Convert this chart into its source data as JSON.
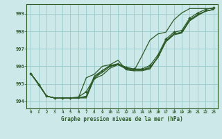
{
  "title": "Graphe pression niveau de la mer (hPa)",
  "background_color": "#cce8e8",
  "grid_color": "#9ecece",
  "line_color": "#2d5a27",
  "marker_color": "#2d5a27",
  "x_labels": [
    "0",
    "1",
    "2",
    "3",
    "4",
    "5",
    "6",
    "7",
    "8",
    "9",
    "10",
    "11",
    "12",
    "13",
    "14",
    "15",
    "16",
    "17",
    "18",
    "19",
    "20",
    "21",
    "22",
    "23"
  ],
  "y_ticks": [
    994,
    995,
    996,
    997,
    998,
    999
  ],
  "ylim": [
    993.6,
    999.55
  ],
  "xlim": [
    -0.5,
    23.5
  ],
  "series": [
    {
      "y": [
        995.6,
        995.0,
        994.3,
        994.2,
        994.2,
        994.2,
        994.2,
        994.2,
        995.3,
        995.5,
        995.9,
        996.1,
        995.85,
        995.75,
        995.75,
        995.85,
        996.55,
        997.45,
        997.85,
        997.95,
        998.65,
        998.95,
        999.15,
        999.25
      ],
      "has_markers": false
    },
    {
      "y": [
        995.6,
        995.0,
        994.3,
        994.2,
        994.2,
        994.2,
        994.2,
        994.25,
        995.35,
        995.65,
        996.0,
        996.1,
        995.9,
        995.8,
        995.8,
        995.9,
        996.5,
        997.4,
        997.8,
        997.9,
        998.6,
        998.9,
        999.15,
        999.25
      ],
      "has_markers": false
    },
    {
      "y": [
        995.6,
        995.0,
        994.3,
        994.2,
        994.2,
        994.2,
        994.2,
        994.3,
        995.45,
        995.75,
        996.05,
        996.1,
        995.95,
        995.8,
        995.8,
        995.95,
        996.5,
        997.45,
        997.85,
        997.95,
        998.65,
        998.95,
        999.15,
        999.25
      ],
      "has_markers": false
    },
    {
      "y": [
        995.6,
        994.95,
        994.3,
        994.2,
        994.2,
        994.2,
        994.25,
        994.55,
        995.35,
        995.75,
        996.05,
        996.15,
        995.95,
        995.85,
        995.85,
        996.05,
        996.65,
        997.55,
        997.95,
        998.05,
        998.75,
        999.05,
        999.25,
        999.35
      ],
      "has_markers": true
    },
    {
      "y": [
        995.6,
        995.0,
        994.3,
        994.2,
        994.2,
        994.2,
        994.2,
        995.35,
        995.55,
        996.0,
        996.1,
        996.35,
        995.8,
        995.75,
        996.6,
        997.5,
        997.85,
        997.95,
        998.65,
        999.05,
        999.3,
        999.3,
        999.3,
        999.3
      ],
      "has_markers": false
    }
  ]
}
